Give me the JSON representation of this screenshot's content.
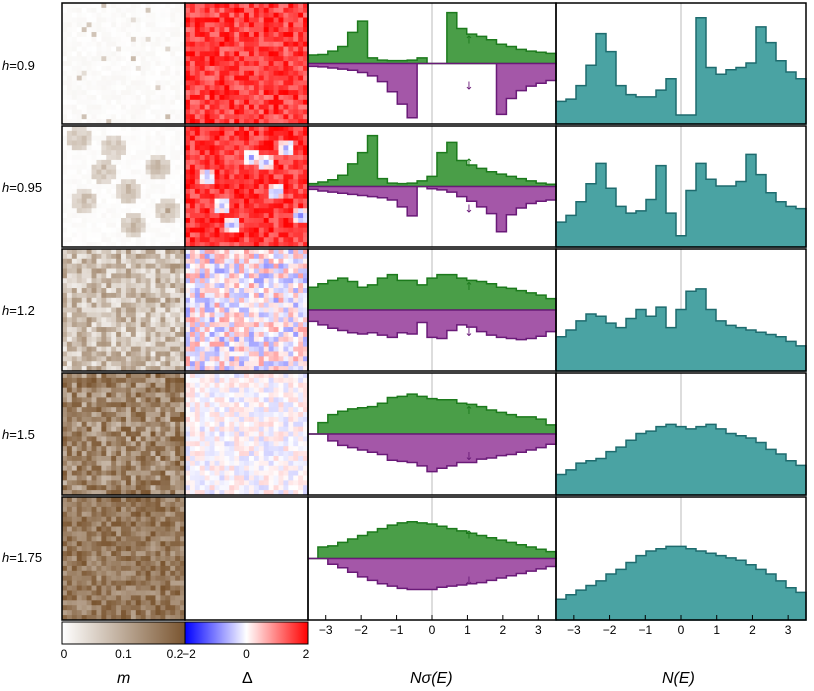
{
  "chart_data": {
    "type": "figure-grid",
    "row_label_prefix": "h=",
    "rows": [
      {
        "h": "0.9"
      },
      {
        "h": "0.95"
      },
      {
        "h": "1.2"
      },
      {
        "h": "1.5"
      },
      {
        "h": "1.75"
      }
    ],
    "columns": [
      {
        "key": "m",
        "xlabel": "m",
        "type": "heatmap",
        "colormap": [
          "#ffffff",
          "#7a5530"
        ],
        "range": [
          0,
          0.2
        ],
        "ticks": [
          "0",
          "0.1",
          "0.2"
        ]
      },
      {
        "key": "delta",
        "xlabel": "Δ",
        "type": "heatmap",
        "colormap": [
          "#0000ff",
          "#ffffff",
          "#ff0000"
        ],
        "range": [
          -2,
          2
        ],
        "ticks": [
          "−2",
          "0",
          "2"
        ]
      },
      {
        "key": "spin_dos",
        "xlabel": "Nσ(E)",
        "type": "area",
        "xlim": [
          -3.5,
          3.5
        ],
        "xticks": [
          "−3",
          "−2",
          "−1",
          "0",
          "1",
          "2",
          "3"
        ],
        "up_arrow": "↑",
        "down_arrow": "↓"
      },
      {
        "key": "total_dos",
        "xlabel": "N(E)",
        "type": "area",
        "xlim": [
          -3.5,
          3.5
        ],
        "xticks": [
          "−3",
          "−2",
          "−1",
          "0",
          "1",
          "2",
          "3"
        ]
      }
    ],
    "colors": {
      "up": "#4a9e48",
      "up_line": "#1c7a1c",
      "down": "#a457a8",
      "down_line": "#6a1a78",
      "total": "#4aa3a3",
      "total_line": "#1e6b6e",
      "zero_line": "#bbbbbb"
    },
    "series": [
      {
        "h": "0.9",
        "up": [
          0.15,
          0.16,
          0.22,
          0.3,
          0.55,
          0.75,
          0.1,
          0.06,
          0.05,
          0.05,
          0.06,
          0.1,
          0.0,
          0.0,
          0.9,
          0.62,
          0.52,
          0.48,
          0.42,
          0.34,
          0.3,
          0.25,
          0.22,
          0.2,
          0.18
        ],
        "down": [
          0.05,
          0.06,
          0.08,
          0.1,
          0.12,
          0.16,
          0.22,
          0.32,
          0.5,
          0.72,
          0.96,
          0.0,
          0.0,
          0.0,
          0.0,
          0.0,
          0.0,
          0.0,
          0.0,
          0.9,
          0.62,
          0.48,
          0.4,
          0.35,
          0.3
        ],
        "total": [
          0.2,
          0.22,
          0.34,
          0.52,
          0.8,
          0.64,
          0.34,
          0.26,
          0.24,
          0.24,
          0.3,
          0.4,
          0.08,
          0.08,
          0.94,
          0.5,
          0.44,
          0.48,
          0.5,
          0.54,
          0.86,
          0.72,
          0.56,
          0.46,
          0.4
        ]
      },
      {
        "h": "0.95",
        "up": [
          0.05,
          0.08,
          0.12,
          0.2,
          0.4,
          0.6,
          0.9,
          0.14,
          0.06,
          0.05,
          0.06,
          0.1,
          0.18,
          0.6,
          0.78,
          0.46,
          0.38,
          0.32,
          0.26,
          0.22,
          0.18,
          0.14,
          0.1,
          0.06,
          0.04
        ],
        "down": [
          0.05,
          0.08,
          0.1,
          0.12,
          0.14,
          0.16,
          0.18,
          0.2,
          0.24,
          0.36,
          0.52,
          0.0,
          0.04,
          0.06,
          0.1,
          0.18,
          0.26,
          0.36,
          0.48,
          0.8,
          0.5,
          0.38,
          0.3,
          0.26,
          0.24
        ],
        "total": [
          0.22,
          0.28,
          0.4,
          0.56,
          0.74,
          0.52,
          0.36,
          0.3,
          0.32,
          0.42,
          0.72,
          0.3,
          0.1,
          0.5,
          0.74,
          0.6,
          0.54,
          0.54,
          0.58,
          0.82,
          0.64,
          0.48,
          0.4,
          0.36,
          0.34
        ]
      },
      {
        "h": "1.2",
        "up": [
          0.4,
          0.46,
          0.52,
          0.56,
          0.5,
          0.4,
          0.44,
          0.56,
          0.62,
          0.52,
          0.52,
          0.44,
          0.56,
          0.62,
          0.62,
          0.56,
          0.52,
          0.5,
          0.46,
          0.4,
          0.38,
          0.34,
          0.3,
          0.26,
          0.2
        ],
        "down": [
          0.2,
          0.26,
          0.32,
          0.36,
          0.4,
          0.42,
          0.4,
          0.44,
          0.48,
          0.4,
          0.42,
          0.22,
          0.48,
          0.5,
          0.36,
          0.26,
          0.3,
          0.38,
          0.44,
          0.48,
          0.5,
          0.52,
          0.5,
          0.46,
          0.38
        ],
        "total": [
          0.3,
          0.36,
          0.44,
          0.5,
          0.48,
          0.42,
          0.38,
          0.46,
          0.54,
          0.48,
          0.56,
          0.38,
          0.54,
          0.7,
          0.72,
          0.54,
          0.44,
          0.4,
          0.38,
          0.36,
          0.34,
          0.32,
          0.3,
          0.26,
          0.22
        ]
      },
      {
        "h": "1.5",
        "up": [
          0.0,
          0.2,
          0.34,
          0.4,
          0.44,
          0.46,
          0.48,
          0.54,
          0.64,
          0.66,
          0.7,
          0.66,
          0.62,
          0.6,
          0.6,
          0.54,
          0.52,
          0.48,
          0.42,
          0.38,
          0.34,
          0.3,
          0.3,
          0.26,
          0.16
        ],
        "down": [
          0.0,
          0.0,
          0.12,
          0.2,
          0.24,
          0.28,
          0.32,
          0.36,
          0.46,
          0.48,
          0.5,
          0.56,
          0.66,
          0.6,
          0.56,
          0.5,
          0.5,
          0.44,
          0.42,
          0.38,
          0.36,
          0.32,
          0.28,
          0.24,
          0.18
        ],
        "total": [
          0.18,
          0.22,
          0.28,
          0.3,
          0.32,
          0.38,
          0.42,
          0.48,
          0.54,
          0.56,
          0.6,
          0.62,
          0.6,
          0.58,
          0.6,
          0.62,
          0.58,
          0.54,
          0.52,
          0.5,
          0.46,
          0.4,
          0.36,
          0.3,
          0.26
        ]
      },
      {
        "h": "1.75",
        "up": [
          0.0,
          0.2,
          0.22,
          0.28,
          0.34,
          0.4,
          0.46,
          0.52,
          0.58,
          0.62,
          0.64,
          0.62,
          0.6,
          0.56,
          0.52,
          0.48,
          0.44,
          0.4,
          0.36,
          0.32,
          0.28,
          0.24,
          0.2,
          0.16,
          0.12
        ],
        "down": [
          0.0,
          0.0,
          0.1,
          0.16,
          0.24,
          0.32,
          0.38,
          0.44,
          0.48,
          0.52,
          0.54,
          0.54,
          0.54,
          0.5,
          0.48,
          0.46,
          0.44,
          0.42,
          0.38,
          0.34,
          0.3,
          0.26,
          0.22,
          0.18,
          0.14
        ],
        "total": [
          0.18,
          0.22,
          0.26,
          0.3,
          0.34,
          0.4,
          0.44,
          0.5,
          0.56,
          0.6,
          0.62,
          0.64,
          0.64,
          0.62,
          0.6,
          0.58,
          0.56,
          0.54,
          0.52,
          0.48,
          0.44,
          0.4,
          0.34,
          0.28,
          0.24
        ]
      }
    ]
  }
}
